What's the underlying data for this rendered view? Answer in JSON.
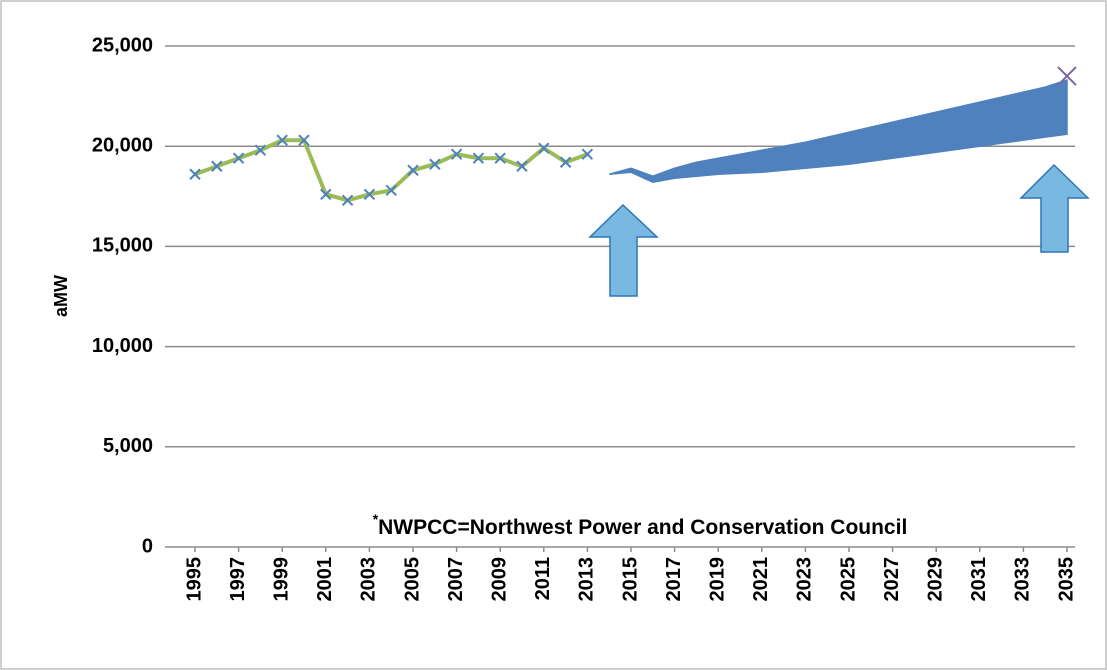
{
  "chart_data": {
    "type": "line",
    "ylabel": "aMW",
    "annotation_mark": "*",
    "annotation": "NWPCC=Northwest Power and Conservation Council",
    "x": [
      1995,
      1996,
      1997,
      1998,
      1999,
      2000,
      2001,
      2002,
      2003,
      2004,
      2005,
      2006,
      2007,
      2008,
      2009,
      2010,
      2011,
      2012,
      2013,
      2014,
      2015,
      2016,
      2017,
      2018,
      2019,
      2020,
      2021,
      2022,
      2023,
      2024,
      2025,
      2026,
      2027,
      2028,
      2029,
      2030,
      2031,
      2032,
      2033,
      2034,
      2035
    ],
    "xlim": [
      1995,
      2035
    ],
    "xticks": [
      1995,
      1997,
      1999,
      2001,
      2003,
      2005,
      2007,
      2009,
      2011,
      2013,
      2015,
      2017,
      2019,
      2021,
      2023,
      2025,
      2027,
      2029,
      2031,
      2033,
      2035
    ],
    "ylim": [
      0,
      25000
    ],
    "yticks": [
      0,
      {
        "value": 5000,
        "label": "5,000"
      },
      {
        "value": 10000,
        "label": "10,000"
      },
      {
        "value": 15000,
        "label": "15,000"
      },
      {
        "value": 20000,
        "label": "20,000"
      },
      {
        "value": 25000,
        "label": "25,000"
      }
    ],
    "grid": true,
    "series": [
      {
        "color": "#9bbb59",
        "marker_color": "#4f81bd",
        "values": [
          18600,
          19000,
          19400,
          19800,
          20300,
          20300,
          17600,
          17300,
          17600,
          17800,
          18800,
          19100,
          19600,
          19400,
          19400,
          19000,
          19900,
          19200,
          19600,
          null,
          null,
          null,
          null,
          null,
          null,
          null,
          null,
          null,
          null,
          null,
          null,
          null,
          null,
          null,
          null,
          null,
          null,
          null,
          null,
          null,
          null
        ]
      }
    ],
    "band": {
      "color": "#4f81bd",
      "high": [
        null,
        null,
        null,
        null,
        null,
        null,
        null,
        null,
        null,
        null,
        null,
        null,
        null,
        null,
        null,
        null,
        null,
        null,
        null,
        18600,
        18900,
        18500,
        18900,
        19200,
        19400,
        19600,
        19800,
        20000,
        20200,
        20450,
        20700,
        20950,
        21200,
        21450,
        21700,
        21950,
        22200,
        22450,
        22700,
        22950,
        23300
      ],
      "low": [
        null,
        null,
        null,
        null,
        null,
        null,
        null,
        null,
        null,
        null,
        null,
        null,
        null,
        null,
        null,
        null,
        null,
        null,
        null,
        18600,
        18700,
        18200,
        18400,
        18500,
        18600,
        18650,
        18700,
        18800,
        18900,
        19000,
        19100,
        19250,
        19400,
        19550,
        19700,
        19850,
        20000,
        20150,
        20300,
        20450,
        20600
      ]
    },
    "points": {
      "color": "#8064a2",
      "x": [
        2035
      ],
      "values": [
        23500
      ]
    }
  }
}
